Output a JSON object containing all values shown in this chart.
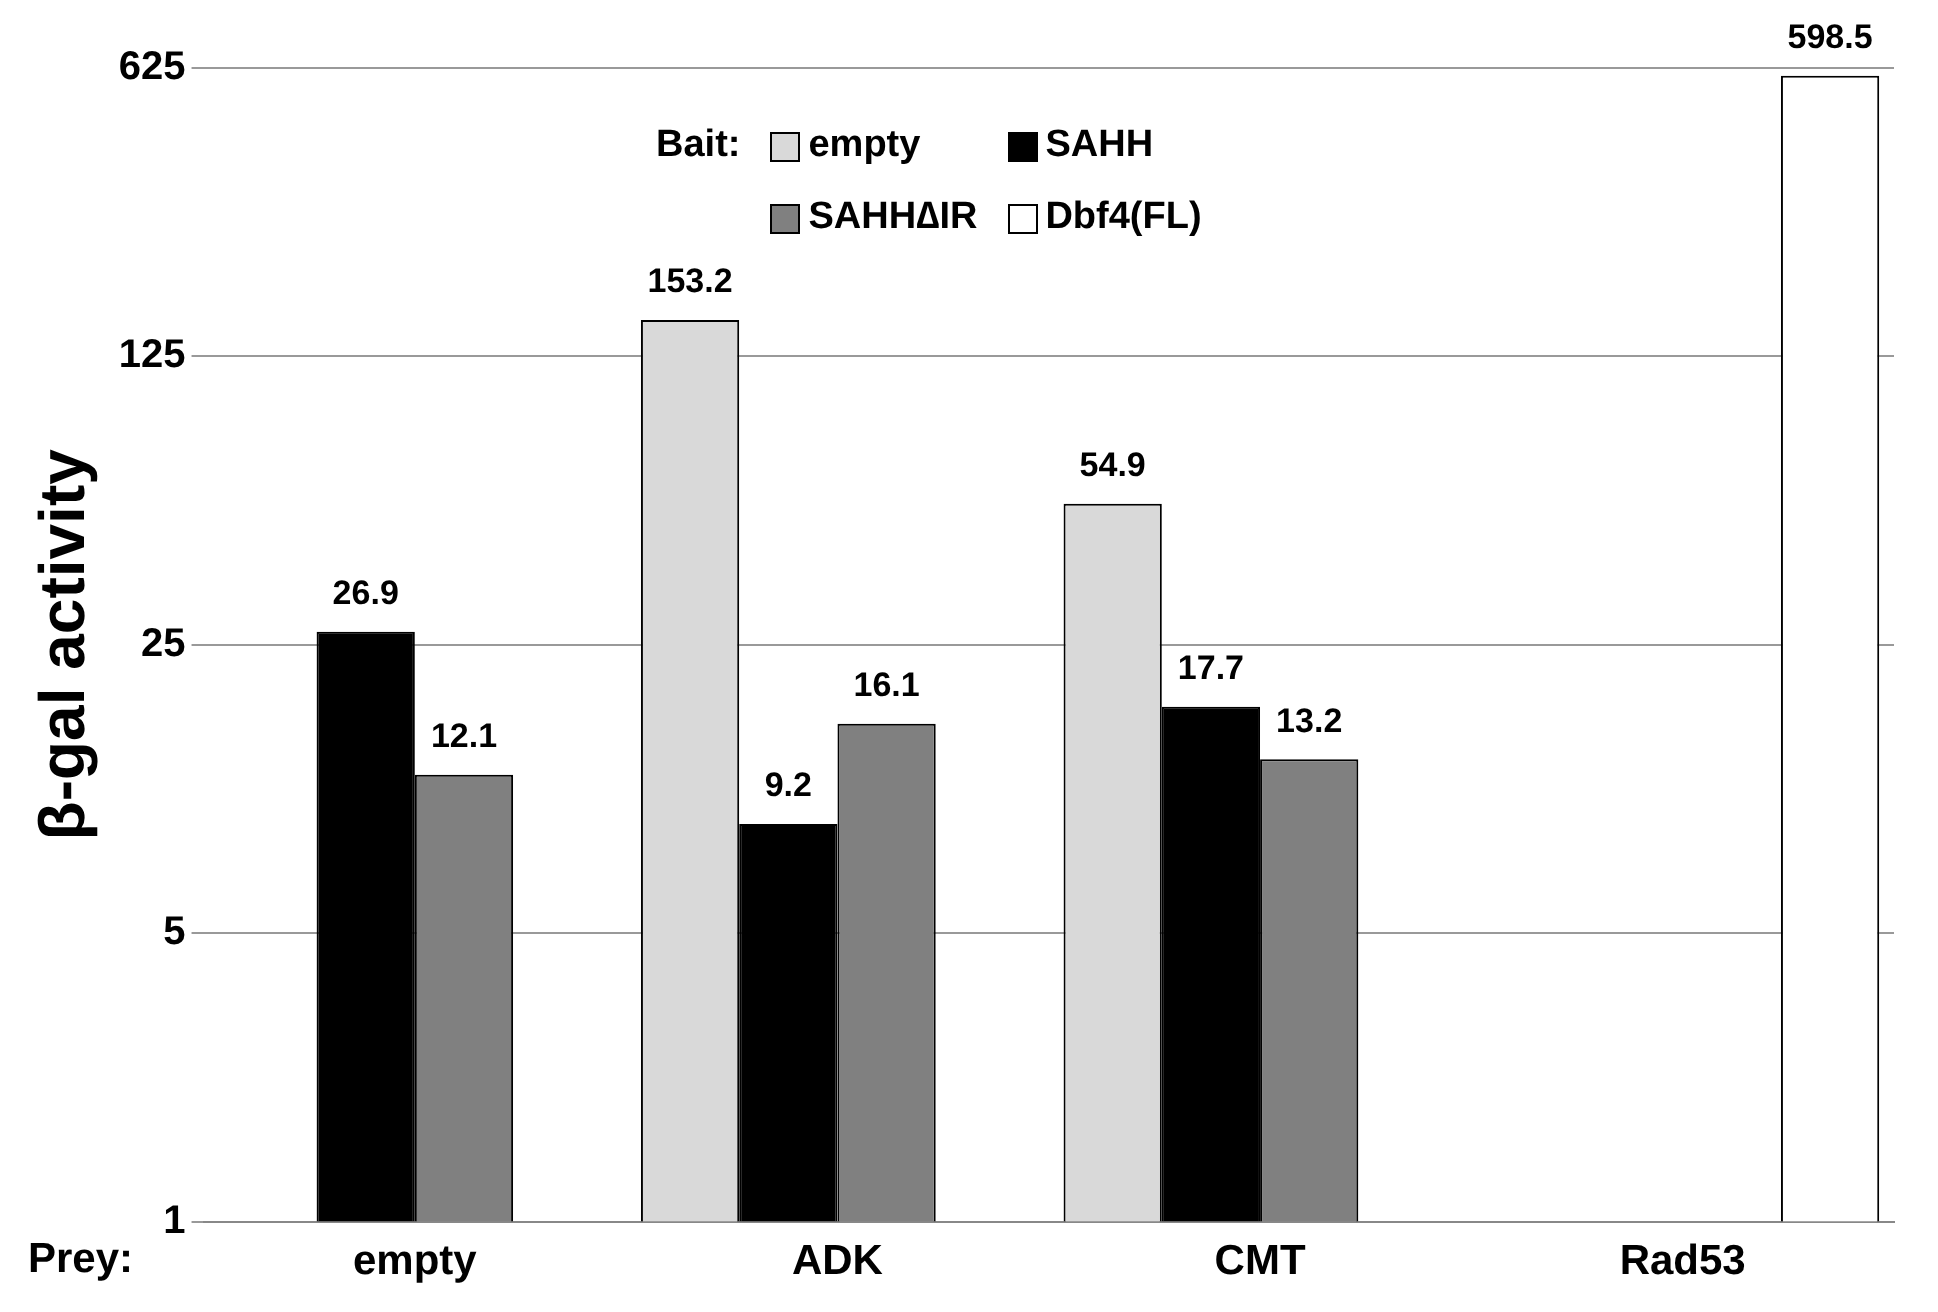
{
  "chart_data": {
    "type": "bar",
    "xlabel": "Prey:",
    "ylabel": "β-gal activity",
    "legend_title": "Bait:",
    "categories": [
      "empty",
      "ADK",
      "CMT",
      "Rad53"
    ],
    "series": [
      {
        "name": "empty",
        "color": "#d9d9d9",
        "values": [
          null,
          153.2,
          54.9,
          null
        ]
      },
      {
        "name": "SAHH",
        "color": "#000000",
        "values": [
          26.9,
          9.2,
          17.7,
          null
        ]
      },
      {
        "name": "SAHH∆IR",
        "color": "#808080",
        "values": [
          12.1,
          16.1,
          13.2,
          null
        ]
      },
      {
        "name": "Dbf4(FL)",
        "color": "#ffffff",
        "values": [
          null,
          null,
          null,
          598.5
        ]
      }
    ],
    "log": true,
    "ylim": [
      1,
      625
    ],
    "yticks": [
      1,
      5,
      25,
      125,
      625
    ],
    "grid": "y",
    "legend": "top right",
    "data_labels": true
  }
}
